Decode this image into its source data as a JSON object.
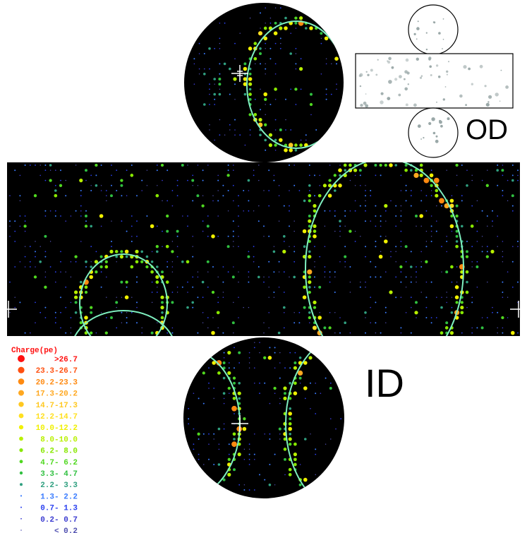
{
  "legend": {
    "title": "Charge(pe)",
    "items": [
      {
        "label": ">26.7",
        "color": "#ff1010"
      },
      {
        "label": "23.3-26.7",
        "color": "#ff5010"
      },
      {
        "label": "20.2-23.3",
        "color": "#ff8a10"
      },
      {
        "label": "17.3-20.2",
        "color": "#ffa820"
      },
      {
        "label": "14.7-17.3",
        "color": "#ffc820"
      },
      {
        "label": "12.2-14.7",
        "color": "#ffe020"
      },
      {
        "label": "10.0-12.2",
        "color": "#f0f000"
      },
      {
        "label": "8.0-10.0",
        "color": "#b8f000"
      },
      {
        "label": "6.2- 8.0",
        "color": "#88e800"
      },
      {
        "label": "4.7- 6.2",
        "color": "#50d820"
      },
      {
        "label": "3.3- 4.7",
        "color": "#30c040"
      },
      {
        "label": "2.2- 3.3",
        "color": "#30a080"
      },
      {
        "label": "1.3- 2.2",
        "color": "#3a7cff"
      },
      {
        "label": "0.7- 1.3",
        "color": "#2a40f0"
      },
      {
        "label": "0.2- 0.7",
        "color": "#3a3ad0"
      },
      {
        "label": "< 0.2",
        "color": "#5050b0"
      }
    ]
  },
  "labels": {
    "od": "OD",
    "id": "ID"
  }
}
